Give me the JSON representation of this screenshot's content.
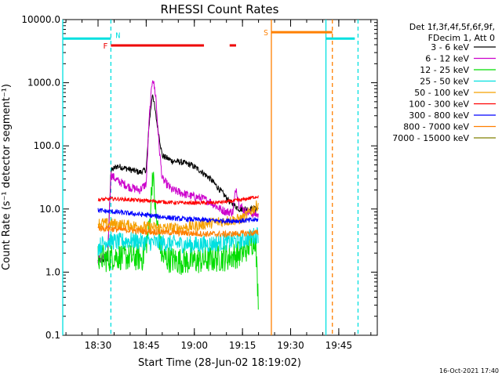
{
  "chart_data": {
    "type": "line",
    "title": "RHESSI Count Rates",
    "xlabel": "Start Time (28-Jun-02 18:19:02)",
    "ylabel": "Count Rate (s⁻¹ detector segment⁻¹)",
    "yscale": "log",
    "ylim": [
      0.1,
      10000
    ],
    "xlim": [
      "18:19",
      "19:57"
    ],
    "y_ticks": [
      "0.1",
      "1.0",
      "10.0",
      "100.0",
      "1000.0",
      "10000.0"
    ],
    "x_ticks": [
      "18:30",
      "18:45",
      "19:00",
      "19:15",
      "19:30",
      "19:45"
    ],
    "legend_title": [
      "Det 1f,3f,4f,5f,6f,9f,",
      "FDecim 1, Att 0"
    ],
    "legend_position": "right",
    "series": [
      {
        "name": "3 - 6 keV",
        "color": "#000000",
        "points": [
          [
            "18:30",
            1.5
          ],
          [
            "18:33",
            1.6
          ],
          [
            "18:34",
            40
          ],
          [
            "18:36",
            48
          ],
          [
            "18:38",
            45
          ],
          [
            "18:40",
            42
          ],
          [
            "18:43",
            38
          ],
          [
            "18:45",
            42
          ],
          [
            "18:46",
            250
          ],
          [
            "18:47",
            700
          ],
          [
            "18:48",
            300
          ],
          [
            "18:50",
            70
          ],
          [
            "18:53",
            58
          ],
          [
            "18:56",
            55
          ],
          [
            "18:59",
            50
          ],
          [
            "19:02",
            40
          ],
          [
            "19:05",
            30
          ],
          [
            "19:08",
            20
          ],
          [
            "19:11",
            13
          ],
          [
            "19:14",
            10
          ],
          [
            "19:17",
            10
          ],
          [
            "19:20",
            10
          ]
        ]
      },
      {
        "name": "6 - 12 keV",
        "color": "#cc00cc",
        "points": [
          [
            "18:30",
            1.6
          ],
          [
            "18:33",
            1.8
          ],
          [
            "18:34",
            35
          ],
          [
            "18:36",
            28
          ],
          [
            "18:38",
            25
          ],
          [
            "18:40",
            22
          ],
          [
            "18:43",
            20
          ],
          [
            "18:45",
            25
          ],
          [
            "18:46",
            300
          ],
          [
            "18:47",
            1250
          ],
          [
            "18:48",
            600
          ],
          [
            "18:49",
            100
          ],
          [
            "18:50",
            30
          ],
          [
            "18:53",
            20
          ],
          [
            "18:56",
            18
          ],
          [
            "18:59",
            16
          ],
          [
            "19:02",
            15
          ],
          [
            "19:05",
            13
          ],
          [
            "19:08",
            10
          ],
          [
            "19:10",
            9
          ],
          [
            "19:12",
            9
          ],
          [
            "19:13",
            22
          ],
          [
            "19:14",
            12
          ],
          [
            "19:16",
            9
          ],
          [
            "19:20",
            8
          ]
        ]
      },
      {
        "name": "12 - 25 keV",
        "color": "#00dd00",
        "points": [
          [
            "18:30",
            1.8
          ],
          [
            "18:33",
            1.6
          ],
          [
            "18:35",
            1.8
          ],
          [
            "18:40",
            1.7
          ],
          [
            "18:44",
            1.7
          ],
          [
            "18:46",
            5
          ],
          [
            "18:47",
            40
          ],
          [
            "18:48",
            8
          ],
          [
            "18:50",
            1.7
          ],
          [
            "18:55",
            1.5
          ],
          [
            "19:00",
            1.5
          ],
          [
            "19:05",
            1.6
          ],
          [
            "19:10",
            1.7
          ],
          [
            "19:15",
            2.0
          ],
          [
            "19:19",
            3.5
          ],
          [
            "19:20",
            0.3
          ]
        ]
      },
      {
        "name": "25 - 50 keV",
        "color": "#00e0e0",
        "points": [
          [
            "18:30",
            2.5
          ],
          [
            "18:33",
            3.2
          ],
          [
            "18:36",
            3.0
          ],
          [
            "18:40",
            3.2
          ],
          [
            "18:45",
            3.0
          ],
          [
            "18:50",
            2.9
          ],
          [
            "18:55",
            2.8
          ],
          [
            "19:00",
            2.7
          ],
          [
            "19:05",
            2.8
          ],
          [
            "19:10",
            3.0
          ],
          [
            "19:15",
            3.2
          ],
          [
            "19:20",
            4.0
          ]
        ]
      },
      {
        "name": "50 - 100 keV",
        "color": "#f5a000",
        "points": [
          [
            "18:30",
            6.0
          ],
          [
            "18:35",
            5.8
          ],
          [
            "18:40",
            5.5
          ],
          [
            "18:45",
            5.2
          ],
          [
            "18:50",
            5.0
          ],
          [
            "18:55",
            5.0
          ],
          [
            "19:00",
            5.3
          ],
          [
            "19:05",
            6.0
          ],
          [
            "19:10",
            6.5
          ],
          [
            "19:15",
            7.0
          ],
          [
            "19:20",
            12
          ]
        ]
      },
      {
        "name": "100 - 300 keV",
        "color": "#ff0000",
        "points": [
          [
            "18:30",
            14
          ],
          [
            "18:35",
            14.5
          ],
          [
            "18:40",
            14
          ],
          [
            "18:45",
            13.5
          ],
          [
            "18:50",
            13
          ],
          [
            "18:55",
            12.5
          ],
          [
            "19:00",
            12.5
          ],
          [
            "19:05",
            12.5
          ],
          [
            "19:10",
            13
          ],
          [
            "19:15",
            14
          ],
          [
            "19:20",
            16
          ]
        ]
      },
      {
        "name": "300 - 800 keV",
        "color": "#0000ff",
        "points": [
          [
            "18:30",
            9.5
          ],
          [
            "18:35",
            9
          ],
          [
            "18:40",
            8.5
          ],
          [
            "18:45",
            8
          ],
          [
            "18:50",
            7.5
          ],
          [
            "18:55",
            7
          ],
          [
            "19:00",
            6.8
          ],
          [
            "19:05",
            6.6
          ],
          [
            "19:10",
            6.5
          ],
          [
            "19:15",
            6.5
          ],
          [
            "19:20",
            6.8
          ]
        ]
      },
      {
        "name": "800 - 7000 keV",
        "color": "#ff7f00",
        "points": [
          [
            "18:30",
            5.0
          ],
          [
            "18:35",
            4.8
          ],
          [
            "18:40",
            4.6
          ],
          [
            "18:45",
            4.4
          ],
          [
            "18:50",
            4.3
          ],
          [
            "18:55",
            4.2
          ],
          [
            "19:00",
            4.1
          ],
          [
            "19:05",
            4.0
          ],
          [
            "19:10",
            4.0
          ],
          [
            "19:15",
            4.1
          ],
          [
            "19:20",
            4.2
          ]
        ]
      },
      {
        "name": "7000 - 15000 keV",
        "color": "#808000",
        "points": []
      }
    ],
    "annotations": {
      "flags": [
        {
          "label": "N",
          "color": "#00e0e0",
          "segments": [
            [
              "18:19",
              "18:34"
            ],
            [
              "19:41",
              "19:50"
            ]
          ],
          "y": 5000
        },
        {
          "label": "F",
          "color": "#ee0000",
          "segments": [
            [
              "18:34",
              "19:03"
            ],
            [
              "19:11",
              "19:13"
            ]
          ],
          "y": 3900
        },
        {
          "label": "S",
          "color": "#ff8000",
          "segments": [
            [
              "19:24",
              "19:43"
            ]
          ],
          "y": 6300
        }
      ],
      "vertical_lines": [
        {
          "x": "18:19",
          "color": "#00e0e0",
          "style": "solid"
        },
        {
          "x": "18:34",
          "color": "#00e0e0",
          "style": "dashed"
        },
        {
          "x": "19:24",
          "color": "#ff8000",
          "style": "solid"
        },
        {
          "x": "19:41",
          "color": "#00e0e0",
          "style": "solid"
        },
        {
          "x": "19:43",
          "color": "#ff8000",
          "style": "dashed"
        },
        {
          "x": "19:51",
          "color": "#00e0e0",
          "style": "dashed"
        }
      ]
    }
  },
  "footer": {
    "timestamp": "16-Oct-2021 17:40"
  }
}
